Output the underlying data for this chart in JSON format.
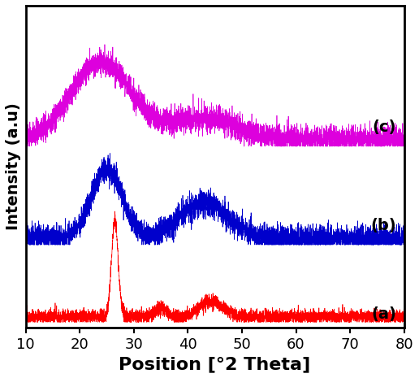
{
  "xlim": [
    10,
    80
  ],
  "xlabel": "Position [°2 Theta]",
  "ylabel": "Intensity (a.u)",
  "xlabel_fontsize": 16,
  "ylabel_fontsize": 14,
  "tick_fontsize": 13,
  "xticks": [
    10,
    20,
    30,
    40,
    50,
    60,
    70,
    80
  ],
  "colors": {
    "a": "#ff0000",
    "b": "#0000cc",
    "c": "#dd00dd"
  },
  "labels": {
    "a": "(a)",
    "b": "(b)",
    "c": "(c)"
  },
  "label_fontsize": 14,
  "background_color": "#ffffff",
  "offsets": {
    "a": 0.0,
    "b": 0.22,
    "c": 0.5
  }
}
